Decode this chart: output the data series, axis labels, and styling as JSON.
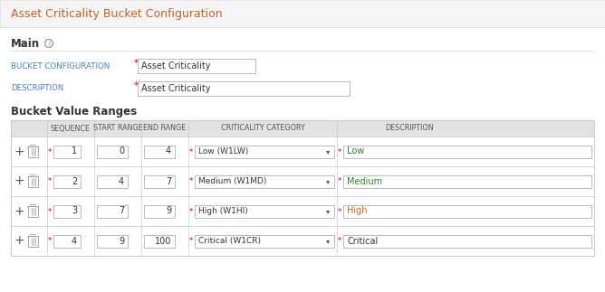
{
  "title": "Asset Criticality Bucket Configuration",
  "title_color": "#c0622a",
  "section1_title": "Main",
  "section2_title": "Bucket Value Ranges",
  "label_color": "#4a7fb5",
  "field_labels": [
    "BUCKET CONFIGURATION",
    "DESCRIPTION"
  ],
  "field_values": [
    "Asset Criticality",
    "Asset Criticality"
  ],
  "table_headers": [
    "SEQUENCE",
    "START RANGE",
    "END RANGE",
    "CRITICALITY CATEGORY",
    "DESCRIPTION"
  ],
  "table_rows": [
    {
      "seq": "1",
      "start": "0",
      "end": "4",
      "category": "Low (W1LW)",
      "desc": "Low",
      "desc_color": "#2e7d32"
    },
    {
      "seq": "2",
      "start": "4",
      "end": "7",
      "category": "Medium (W1MD)",
      "desc": "Medium",
      "desc_color": "#2e7d32"
    },
    {
      "seq": "3",
      "start": "7",
      "end": "9",
      "category": "High (W1HI)",
      "desc": "High",
      "desc_color": "#c0622a"
    },
    {
      "seq": "4",
      "start": "9",
      "end": "100",
      "category": "Critical (W1CR)",
      "desc": "Critical",
      "desc_color": "#333333"
    }
  ],
  "bg_color": "#ffffff",
  "title_bar_bg": "#f5f5f5",
  "header_bg": "#e2e2e2",
  "row_bg": "#ffffff",
  "alt_row_bg": "#f9f9f9",
  "border_color": "#cccccc",
  "divider_color": "#dddddd",
  "input_border": "#b0b0b0",
  "required_star_color": "#cc0000",
  "plus_color": "#555555",
  "trash_color": "#999999",
  "text_color": "#333333",
  "header_text_color": "#555555"
}
